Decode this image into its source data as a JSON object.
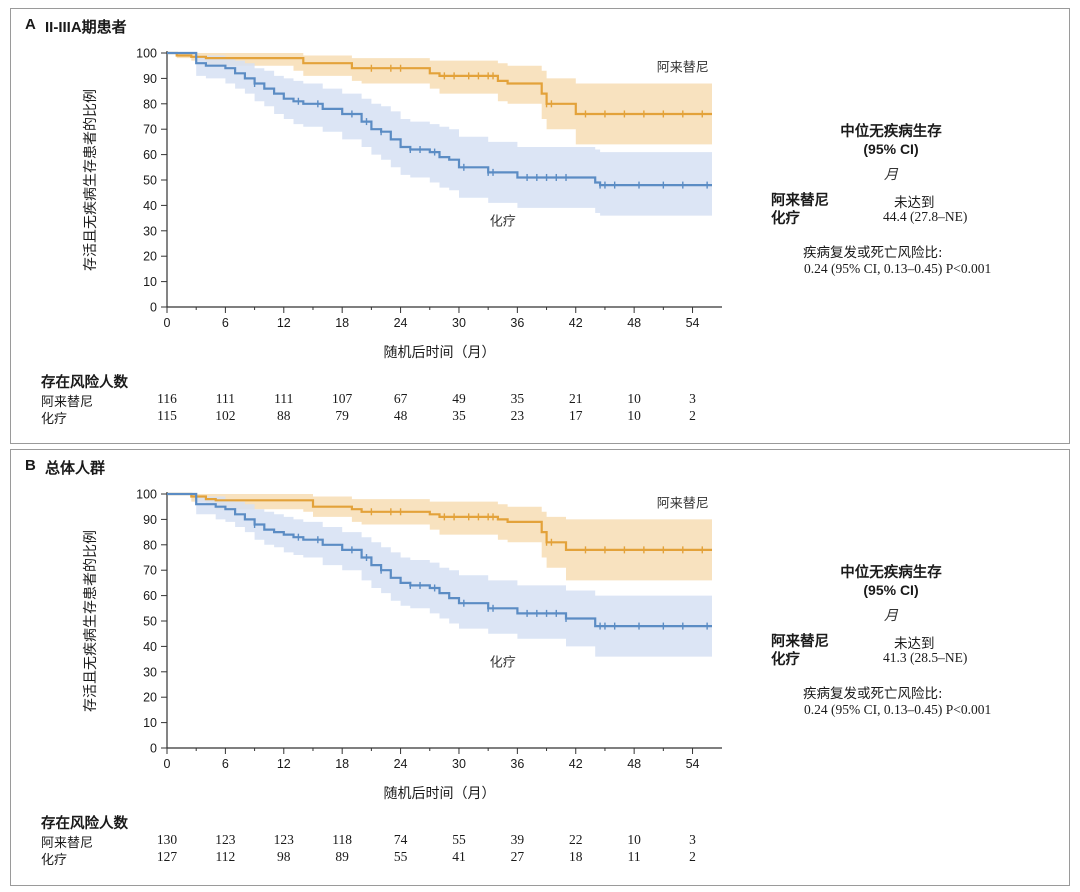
{
  "colors": {
    "alectinib": "#E3A23A",
    "alectinib_band": "#F7DDB4",
    "chemo": "#5B8CC4",
    "chemo_band": "#D6E1F3",
    "axis": "#333333",
    "frame": "#9A9A9A"
  },
  "chart_data": [
    {
      "type": "line",
      "panel_letter": "A",
      "title": "II-IIIA期患者",
      "xlabel": "随机后时间（月）",
      "ylabel": "存活且无疾病生存患者的比例",
      "xlim": [
        0,
        56
      ],
      "ylim": [
        0,
        100
      ],
      "x_ticks": [
        "0",
        "6",
        "12",
        "18",
        "24",
        "30",
        "36",
        "42",
        "48",
        "54"
      ],
      "y_ticks": [
        "0",
        "10",
        "20",
        "30",
        "40",
        "50",
        "60",
        "70",
        "80",
        "90",
        "100"
      ],
      "grid": false,
      "series": [
        {
          "name": "阿来替尼",
          "key": "alectinib",
          "x": [
            0,
            1,
            2.5,
            4,
            13,
            14,
            19,
            20,
            27,
            28,
            34,
            35,
            38.5,
            39,
            42,
            56
          ],
          "y": [
            100,
            99,
            98.5,
            98,
            98,
            96,
            94,
            94,
            92,
            91,
            89,
            88,
            84,
            80,
            76,
            76
          ],
          "ci_lower": [
            100,
            98,
            97,
            95,
            93,
            91,
            89,
            88,
            86,
            84,
            81,
            80,
            74,
            70,
            64,
            64
          ],
          "ci_upper": [
            100,
            100,
            100,
            100,
            100,
            99,
            98,
            98,
            97,
            97,
            96,
            95,
            93,
            90,
            88,
            88
          ],
          "censor_x": [
            21,
            23,
            24,
            28.5,
            29.5,
            31,
            32,
            33,
            33.5,
            39,
            39.5,
            43,
            45,
            47,
            49,
            51,
            53,
            55
          ]
        },
        {
          "name": "化疗",
          "key": "chemo",
          "x": [
            0,
            3,
            4,
            6,
            7,
            8,
            9,
            10,
            11,
            12,
            13,
            14,
            16,
            18,
            20,
            21,
            22,
            23,
            24,
            25,
            27,
            28,
            29,
            30,
            33,
            36,
            44,
            44.5,
            56
          ],
          "y": [
            100,
            96,
            95,
            94,
            92,
            90,
            88,
            86,
            84,
            82,
            81,
            80,
            78,
            76,
            73,
            70,
            69,
            66,
            63,
            62,
            61,
            59,
            58,
            55,
            53,
            51,
            49,
            48,
            48
          ],
          "ci_lower": [
            100,
            91,
            90,
            88,
            86,
            84,
            81,
            79,
            76,
            74,
            72,
            71,
            69,
            66,
            63,
            60,
            58,
            55,
            52,
            51,
            49,
            47,
            46,
            43,
            41,
            39,
            37,
            36,
            36
          ],
          "ci_upper": [
            100,
            99,
            99,
            98,
            97,
            96,
            94,
            93,
            91,
            90,
            89,
            88,
            86,
            84,
            82,
            80,
            79,
            77,
            74,
            73,
            72,
            71,
            70,
            67,
            65,
            63,
            62,
            61,
            61
          ],
          "censor_x": [
            9,
            13.5,
            15.5,
            19,
            20.5,
            22,
            25,
            26,
            27.5,
            30.5,
            33,
            33.5,
            37,
            38,
            39,
            40,
            41,
            44.5,
            45,
            46,
            48.5,
            51,
            53,
            55.5
          ]
        }
      ],
      "risk_table": {
        "heading": "存在风险人数",
        "times": [
          0,
          6,
          12,
          18,
          24,
          30,
          36,
          42,
          48,
          54
        ],
        "rows": [
          {
            "label": "阿来替尼",
            "values": [
              "116",
              "111",
              "111",
              "107",
              "67",
              "49",
              "35",
              "21",
              "10",
              "3"
            ]
          },
          {
            "label": "化疗",
            "values": [
              "115",
              "102",
              "88",
              "79",
              "48",
              "35",
              "23",
              "17",
              "10",
              "2"
            ]
          }
        ]
      },
      "summary": {
        "title": "中位无疾病生存",
        "ci_label": "(95% CI)",
        "unit": "月",
        "arms": [
          {
            "label": "阿来替尼",
            "value": "未达到"
          },
          {
            "label": "化疗",
            "value": "44.4 (27.8–NE)"
          }
        ],
        "hr_label": "疾病复发或死亡风险比:",
        "hr_value": "0.24 (95% CI, 0.13–0.45) P<0.001"
      }
    },
    {
      "type": "line",
      "panel_letter": "B",
      "title": "总体人群",
      "xlabel": "随机后时间（月）",
      "ylabel": "存活且无疾病生存患者的比例",
      "xlim": [
        0,
        56
      ],
      "ylim": [
        0,
        100
      ],
      "x_ticks": [
        "0",
        "6",
        "12",
        "18",
        "24",
        "30",
        "36",
        "42",
        "48",
        "54"
      ],
      "y_ticks": [
        "0",
        "10",
        "20",
        "30",
        "40",
        "50",
        "60",
        "70",
        "80",
        "90",
        "100"
      ],
      "grid": false,
      "series": [
        {
          "name": "阿来替尼",
          "key": "alectinib",
          "x": [
            0,
            2.5,
            4,
            5,
            14,
            15,
            19,
            20,
            27,
            28,
            34,
            35,
            38.5,
            39,
            41,
            56
          ],
          "y": [
            100,
            99,
            98,
            97.5,
            97.5,
            95,
            94,
            93,
            92,
            91,
            90,
            89,
            85,
            81,
            78,
            78
          ],
          "ci_lower": [
            100,
            97,
            96,
            94,
            93,
            91,
            89,
            88,
            86,
            84,
            82,
            81,
            75,
            71,
            66,
            66
          ],
          "ci_upper": [
            100,
            100,
            100,
            100,
            100,
            99,
            98,
            98,
            97,
            97,
            96,
            95,
            93,
            91,
            90,
            90
          ],
          "censor_x": [
            21,
            23,
            24,
            28.5,
            29.5,
            31,
            32,
            33,
            33.5,
            39,
            39.5,
            43,
            45,
            47,
            49,
            51,
            53,
            55
          ]
        },
        {
          "name": "化疗",
          "key": "chemo",
          "x": [
            0,
            3,
            5,
            6,
            7,
            8,
            9,
            10,
            11,
            12,
            13,
            14,
            16,
            18,
            20,
            21,
            22,
            23,
            24,
            25,
            27,
            28,
            29,
            30,
            33,
            36,
            41,
            44,
            56
          ],
          "y": [
            100,
            96,
            95,
            94,
            92,
            90,
            88,
            86,
            85,
            84,
            83,
            82,
            80,
            78,
            75,
            72,
            70,
            67,
            65,
            64,
            63,
            61,
            59,
            57,
            55,
            53,
            51,
            48,
            48
          ],
          "ci_lower": [
            100,
            92,
            90,
            89,
            87,
            85,
            82,
            80,
            79,
            77,
            76,
            75,
            72,
            70,
            66,
            63,
            61,
            58,
            56,
            55,
            53,
            51,
            49,
            47,
            45,
            43,
            40,
            36,
            36
          ],
          "ci_upper": [
            100,
            99,
            99,
            98,
            97,
            96,
            94,
            93,
            92,
            91,
            90,
            89,
            87,
            85,
            83,
            81,
            79,
            77,
            75,
            74,
            73,
            71,
            70,
            68,
            66,
            64,
            62,
            60,
            60
          ],
          "censor_x": [
            9,
            13.5,
            15.5,
            19,
            20.5,
            22,
            25,
            26,
            27.5,
            30.5,
            33,
            33.5,
            37,
            38,
            39,
            40,
            41,
            44.5,
            45,
            46,
            48.5,
            51,
            53,
            55.5
          ]
        }
      ],
      "risk_table": {
        "heading": "存在风险人数",
        "times": [
          0,
          6,
          12,
          18,
          24,
          30,
          36,
          42,
          48,
          54
        ],
        "rows": [
          {
            "label": "阿来替尼",
            "values": [
              "130",
              "123",
              "123",
              "118",
              "74",
              "55",
              "39",
              "22",
              "10",
              "3"
            ]
          },
          {
            "label": "化疗",
            "values": [
              "127",
              "112",
              "98",
              "89",
              "55",
              "41",
              "27",
              "18",
              "11",
              "2"
            ]
          }
        ]
      },
      "summary": {
        "title": "中位无疾病生存",
        "ci_label": "(95% CI)",
        "unit": "月",
        "arms": [
          {
            "label": "阿来替尼",
            "value": "未达到"
          },
          {
            "label": "化疗",
            "value": "41.3 (28.5–NE)"
          }
        ],
        "hr_label": "疾病复发或死亡风险比:",
        "hr_value": "0.24 (95% CI, 0.13–0.45) P<0.001"
      }
    }
  ]
}
